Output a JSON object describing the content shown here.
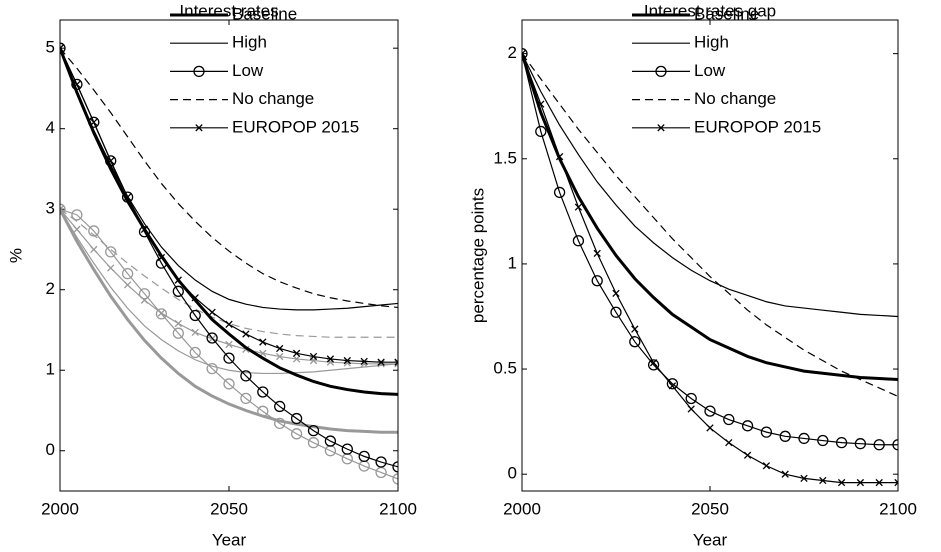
{
  "chart_data": [
    {
      "type": "line",
      "title": "Interest rates",
      "xlabel": "Year",
      "ylabel": "%",
      "x": [
        2000,
        2005,
        2010,
        2015,
        2020,
        2025,
        2030,
        2035,
        2040,
        2045,
        2050,
        2055,
        2060,
        2065,
        2070,
        2075,
        2080,
        2085,
        2090,
        2095,
        2100
      ],
      "xlim": [
        2000,
        2100
      ],
      "xticks": [
        2000,
        2050,
        2100
      ],
      "ylim": [
        -0.5,
        5.35
      ],
      "yticks": [
        0,
        1,
        2,
        3,
        4,
        5
      ],
      "legend": "upper right",
      "series": [
        {
          "name": "Baseline",
          "color": "#000000",
          "line_width": 3,
          "dash": "solid",
          "marker": "none",
          "values": [
            5.0,
            4.45,
            3.95,
            3.5,
            3.1,
            2.75,
            2.42,
            2.12,
            1.87,
            1.63,
            1.45,
            1.28,
            1.15,
            1.03,
            0.94,
            0.86,
            0.8,
            0.76,
            0.73,
            0.71,
            0.7
          ]
        },
        {
          "name": "High",
          "color": "#000000",
          "line_width": 1.2,
          "dash": "solid",
          "marker": "none",
          "values": [
            5.0,
            4.47,
            3.98,
            3.55,
            3.16,
            2.82,
            2.53,
            2.3,
            2.12,
            1.98,
            1.88,
            1.82,
            1.78,
            1.76,
            1.75,
            1.75,
            1.76,
            1.77,
            1.79,
            1.81,
            1.83
          ]
        },
        {
          "name": "Low",
          "color": "#000000",
          "line_width": 1.2,
          "dash": "solid",
          "marker": "circle",
          "values": [
            5.0,
            4.55,
            4.08,
            3.6,
            3.15,
            2.72,
            2.33,
            1.98,
            1.68,
            1.4,
            1.15,
            0.93,
            0.73,
            0.55,
            0.4,
            0.25,
            0.12,
            0.02,
            -0.07,
            -0.14,
            -0.2
          ]
        },
        {
          "name": "No change",
          "color": "#000000",
          "line_width": 1.2,
          "dash": "dashed",
          "marker": "none",
          "values": [
            5.0,
            4.75,
            4.48,
            4.2,
            3.9,
            3.6,
            3.32,
            3.07,
            2.85,
            2.65,
            2.48,
            2.33,
            2.2,
            2.1,
            2.02,
            1.95,
            1.9,
            1.86,
            1.83,
            1.8,
            1.78
          ]
        },
        {
          "name": "EUROPOP 2015",
          "color": "#000000",
          "line_width": 1.2,
          "dash": "solid",
          "marker": "x",
          "values": [
            5.0,
            4.55,
            4.08,
            3.6,
            3.15,
            2.75,
            2.4,
            2.12,
            1.9,
            1.72,
            1.57,
            1.45,
            1.35,
            1.27,
            1.21,
            1.17,
            1.14,
            1.12,
            1.11,
            1.1,
            1.1
          ]
        },
        {
          "color": "#999999",
          "line_width": 3,
          "dash": "solid",
          "marker": "none",
          "values": [
            3.0,
            2.6,
            2.25,
            1.92,
            1.63,
            1.37,
            1.15,
            0.96,
            0.8,
            0.68,
            0.58,
            0.5,
            0.43,
            0.37,
            0.33,
            0.3,
            0.27,
            0.25,
            0.24,
            0.23,
            0.23
          ]
        },
        {
          "color": "#999999",
          "line_width": 1.2,
          "dash": "solid",
          "marker": "none",
          "values": [
            3.0,
            2.65,
            2.33,
            2.03,
            1.77,
            1.55,
            1.38,
            1.24,
            1.13,
            1.05,
            1.0,
            0.97,
            0.96,
            0.96,
            0.97,
            0.98,
            1.0,
            1.02,
            1.04,
            1.06,
            1.08
          ]
        },
        {
          "color": "#999999",
          "line_width": 1.2,
          "dash": "solid",
          "marker": "circle",
          "values": [
            3.0,
            2.93,
            2.73,
            2.47,
            2.2,
            1.95,
            1.7,
            1.46,
            1.22,
            1.02,
            0.83,
            0.65,
            0.49,
            0.34,
            0.21,
            0.1,
            0.0,
            -0.1,
            -0.19,
            -0.27,
            -0.35
          ]
        },
        {
          "color": "#999999",
          "line_width": 1.2,
          "dash": "dashed",
          "marker": "none",
          "values": [
            3.0,
            2.85,
            2.68,
            2.5,
            2.33,
            2.17,
            2.02,
            1.88,
            1.76,
            1.66,
            1.58,
            1.52,
            1.48,
            1.45,
            1.43,
            1.42,
            1.41,
            1.41,
            1.41,
            1.41,
            1.41
          ]
        },
        {
          "color": "#999999",
          "line_width": 1.2,
          "dash": "solid",
          "marker": "x",
          "values": [
            3.0,
            2.75,
            2.5,
            2.27,
            2.06,
            1.87,
            1.71,
            1.58,
            1.47,
            1.39,
            1.32,
            1.26,
            1.21,
            1.17,
            1.14,
            1.12,
            1.1,
            1.09,
            1.08,
            1.08,
            1.08
          ]
        }
      ]
    },
    {
      "type": "line",
      "title": "Interest rates gap",
      "xlabel": "Year",
      "ylabel": "percentage points",
      "x": [
        2000,
        2005,
        2010,
        2015,
        2020,
        2025,
        2030,
        2035,
        2040,
        2045,
        2050,
        2055,
        2060,
        2065,
        2070,
        2075,
        2080,
        2085,
        2090,
        2095,
        2100
      ],
      "xlim": [
        2000,
        2100
      ],
      "xticks": [
        2000,
        2050,
        2100
      ],
      "ylim": [
        -0.08,
        2.16
      ],
      "yticks": [
        0,
        0.5,
        1,
        1.5,
        2
      ],
      "legend": "upper right",
      "series": [
        {
          "name": "Baseline",
          "color": "#000000",
          "line_width": 3,
          "dash": "solid",
          "marker": "none",
          "values": [
            2.0,
            1.72,
            1.5,
            1.32,
            1.17,
            1.04,
            0.93,
            0.84,
            0.76,
            0.7,
            0.64,
            0.6,
            0.56,
            0.53,
            0.51,
            0.49,
            0.48,
            0.47,
            0.46,
            0.455,
            0.45
          ]
        },
        {
          "name": "High",
          "color": "#000000",
          "line_width": 1.2,
          "dash": "solid",
          "marker": "none",
          "values": [
            2.0,
            1.82,
            1.66,
            1.52,
            1.39,
            1.28,
            1.18,
            1.1,
            1.03,
            0.97,
            0.92,
            0.88,
            0.85,
            0.82,
            0.8,
            0.79,
            0.78,
            0.77,
            0.76,
            0.755,
            0.75
          ]
        },
        {
          "name": "Low",
          "color": "#000000",
          "line_width": 1.2,
          "dash": "solid",
          "marker": "circle",
          "values": [
            2.0,
            1.63,
            1.34,
            1.11,
            0.92,
            0.77,
            0.63,
            0.52,
            0.43,
            0.36,
            0.3,
            0.26,
            0.23,
            0.2,
            0.18,
            0.17,
            0.16,
            0.15,
            0.145,
            0.14,
            0.14
          ]
        },
        {
          "name": "No change",
          "color": "#000000",
          "line_width": 1.2,
          "dash": "dashed",
          "marker": "none",
          "values": [
            2.0,
            1.88,
            1.76,
            1.64,
            1.53,
            1.42,
            1.32,
            1.22,
            1.12,
            1.03,
            0.94,
            0.86,
            0.78,
            0.71,
            0.65,
            0.59,
            0.54,
            0.49,
            0.45,
            0.41,
            0.37
          ]
        },
        {
          "name": "EUROPOP 2015",
          "color": "#000000",
          "line_width": 1.2,
          "dash": "solid",
          "marker": "x",
          "values": [
            2.0,
            1.76,
            1.51,
            1.27,
            1.05,
            0.86,
            0.69,
            0.53,
            0.42,
            0.31,
            0.22,
            0.15,
            0.09,
            0.04,
            0.0,
            -0.02,
            -0.03,
            -0.04,
            -0.04,
            -0.04,
            -0.04
          ]
        }
      ]
    }
  ]
}
